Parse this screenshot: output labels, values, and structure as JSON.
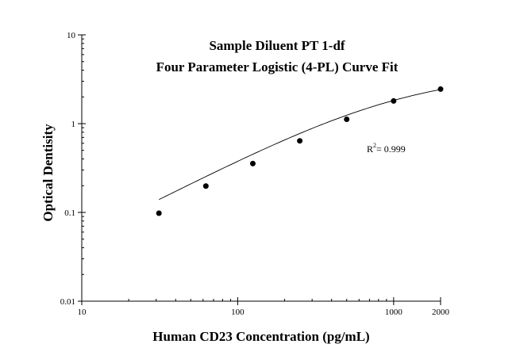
{
  "chart_data": {
    "type": "scatter",
    "title": "Sample Diluent PT 1-df",
    "subtitle": "Four Parameter Logistic (4-PL) Curve Fit",
    "xlabel": "Human CD23 Concentration (pg/mL)",
    "ylabel": "Optical Dentisity",
    "x_scale": "log",
    "y_scale": "log",
    "xlim": [
      10,
      2000
    ],
    "ylim": [
      0.01,
      10
    ],
    "x_ticks": [
      {
        "value": 10,
        "label": "10"
      },
      {
        "value": 100,
        "label": "100"
      },
      {
        "value": 1000,
        "label": "1000"
      },
      {
        "value": 2000,
        "label": "2000"
      }
    ],
    "y_ticks": [
      {
        "value": 0.01,
        "label": "0.01"
      },
      {
        "value": 0.1,
        "label": "0.1"
      },
      {
        "value": 1,
        "label": "1"
      },
      {
        "value": 10,
        "label": "10"
      }
    ],
    "series": [
      {
        "x": [
          31.25,
          62.5,
          125,
          250,
          500,
          1000,
          2000
        ],
        "y": [
          0.098,
          0.198,
          0.355,
          0.64,
          1.12,
          1.8,
          2.45
        ]
      }
    ],
    "fit_curve": {
      "model": "4-PL",
      "A": 0.005,
      "B": 0.93,
      "C": 1090,
      "D": 3.8,
      "x_range": [
        31.25,
        2000
      ]
    },
    "annotation": {
      "r_label": "R",
      "r_sup": "2",
      "r_value": "= 0.999"
    },
    "grid": false,
    "legend": "none",
    "marker_color": "#000000",
    "line_color": "#000000"
  }
}
